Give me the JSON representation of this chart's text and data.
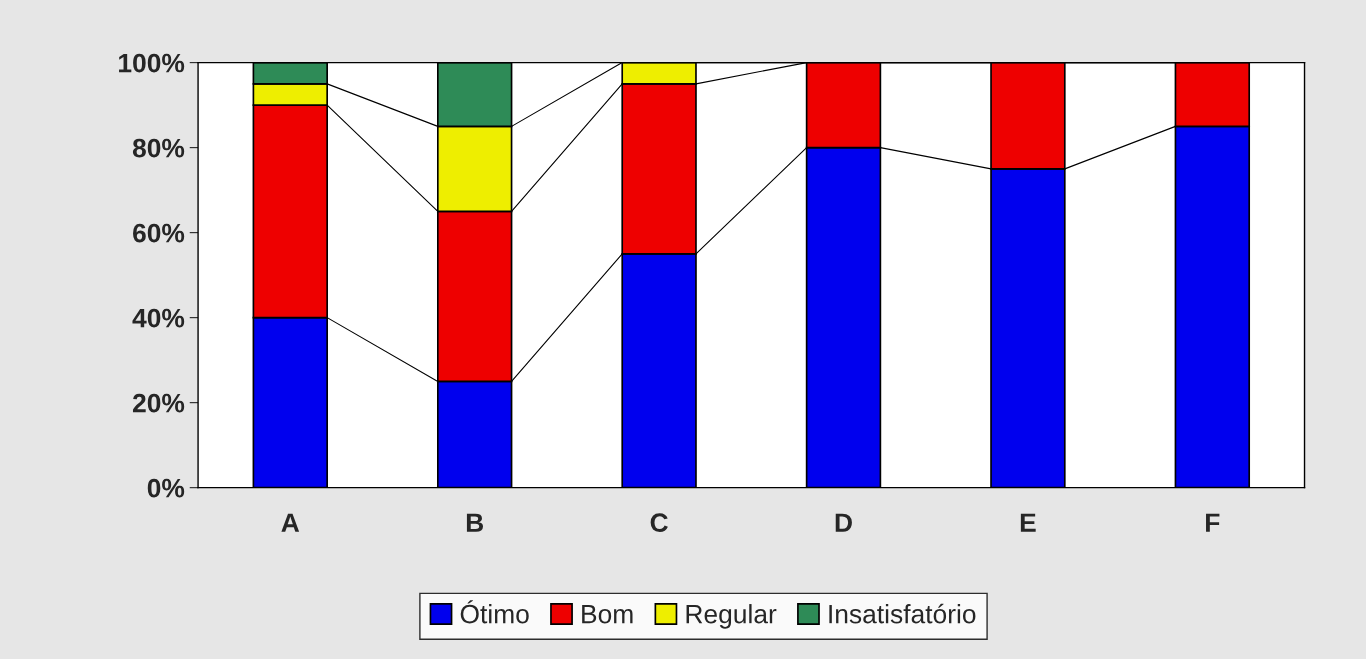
{
  "chart_data": {
    "type": "bar",
    "stacked": true,
    "categories": [
      "A",
      "B",
      "C",
      "D",
      "E",
      "F"
    ],
    "series": [
      {
        "name": "Ótimo",
        "color": "#0000ee",
        "values": [
          40,
          25,
          55,
          80,
          75,
          85
        ]
      },
      {
        "name": "Bom",
        "color": "#ee0000",
        "values": [
          50,
          40,
          40,
          20,
          25,
          15
        ]
      },
      {
        "name": "Regular",
        "color": "#eeee00",
        "values": [
          5,
          20,
          5,
          0,
          0,
          0
        ]
      },
      {
        "name": "Insatisfatório",
        "color": "#2e8b57",
        "values": [
          5,
          15,
          0,
          0,
          0,
          0
        ]
      }
    ],
    "ylim": [
      0,
      100
    ],
    "yticks": [
      {
        "value": 0,
        "label": "0%"
      },
      {
        "value": 20,
        "label": "20%"
      },
      {
        "value": 40,
        "label": "40%"
      },
      {
        "value": 60,
        "label": "60%"
      },
      {
        "value": 80,
        "label": "80%"
      },
      {
        "value": 100,
        "label": "100%"
      }
    ],
    "grid": false,
    "legend": "bottom"
  }
}
